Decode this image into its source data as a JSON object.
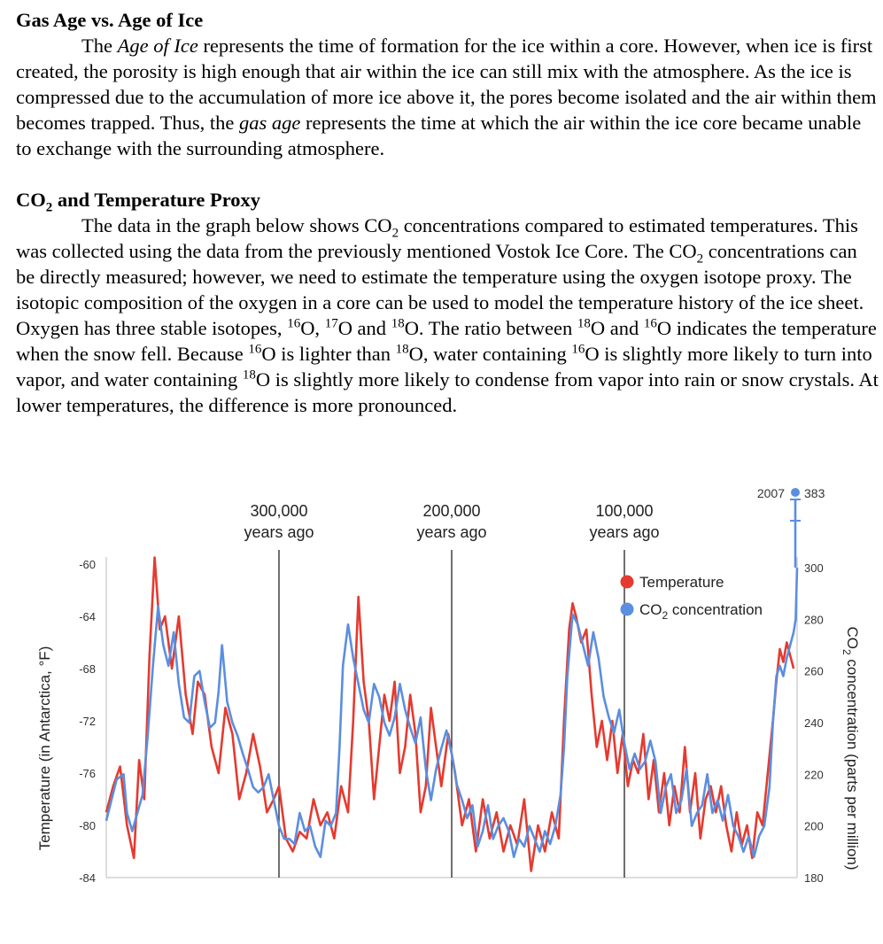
{
  "section1": {
    "heading": "Gas Age vs. Age of Ice",
    "p_intro": "The ",
    "p_term1": "Age of Ice",
    "p_mid": " represents the time of formation for the ice within a core. However, when ice is first created, the porosity is high enough that air within the ice can still mix with the atmosphere. As the ice is compressed due to the accumulation of more ice above it, the pores become isolated and the air within them becomes trapped. Thus, the ",
    "p_term2": "gas age",
    "p_end": " represents the time at which the air within the ice core became unable to exchange with the surrounding atmosphere."
  },
  "section2": {
    "heading_co": "CO",
    "heading_sub": "2",
    "heading_rest": " and Temperature Proxy",
    "p1": "The data in the graph below shows CO",
    "p2": " concentrations compared to estimated temperatures. This was collected using the data from the previously mentioned Vostok Ice Core. The CO",
    "p3": " concentrations can be directly measured; however, we need to estimate the temperature using the oxygen isotope proxy. The isotopic composition of the oxygen in a core can be used to model the temperature history of the ice sheet. Oxygen has three stable isotopes, ",
    "p4": "O, ",
    "p5": "O and ",
    "p6": "O. The ratio between ",
    "p7": "O and ",
    "p8": "O indicates the temperature when the snow fell. Because ",
    "p9": "O is lighter than ",
    "p10": "O, water containing ",
    "p11": "O is slightly more likely to turn into vapor, and water containing ",
    "p12": "O is slightly more likely to condense from vapor into rain or snow crystals. At lower temperatures, the difference is more pronounced.",
    "sub2": "2",
    "iso16": "16",
    "iso17": "17",
    "iso18": "18"
  },
  "chart_data": {
    "type": "line",
    "ylabel_left": "Temperature (in Antarctica, °F)",
    "ylabel_right_main": "CO",
    "ylabel_right_sub": "2",
    "ylabel_right_rest": " concentration (parts per million)",
    "left_ticks": [
      "-60",
      "-64",
      "-68",
      "-72",
      "-76",
      "-80",
      "-84"
    ],
    "right_ticks": [
      "300",
      "280",
      "260",
      "240",
      "220",
      "200",
      "180"
    ],
    "ylim_left": [
      -84,
      -60
    ],
    "ylim_right": [
      180,
      300
    ],
    "xlim_years_ago": [
      400000,
      0
    ],
    "markers": [
      {
        "years_ago": 300000,
        "label1": "300,000",
        "label2": "years ago"
      },
      {
        "years_ago": 200000,
        "label1": "200,000",
        "label2": "years ago"
      },
      {
        "years_ago": 100000,
        "label1": "100,000",
        "label2": "years ago"
      }
    ],
    "present": {
      "year_label": "2007",
      "value_label": "383",
      "co2": 383
    },
    "legend": [
      {
        "name": "Temperature",
        "color": "#e53a2f"
      },
      {
        "name_main": "CO",
        "name_sub": "2",
        "name_rest": " concentration",
        "color": "#5b8ee0"
      }
    ],
    "series": [
      {
        "name": "Temperature",
        "axis": "left",
        "color": "#e53a2f",
        "points": [
          [
            400000,
            -79
          ],
          [
            396000,
            -77
          ],
          [
            392000,
            -75.5
          ],
          [
            388000,
            -80
          ],
          [
            384000,
            -82.5
          ],
          [
            381000,
            -75
          ],
          [
            378000,
            -78
          ],
          [
            375000,
            -67
          ],
          [
            372000,
            -59.5
          ],
          [
            369000,
            -65
          ],
          [
            366000,
            -64
          ],
          [
            362000,
            -68
          ],
          [
            358000,
            -64
          ],
          [
            354000,
            -70
          ],
          [
            350000,
            -73
          ],
          [
            347000,
            -69
          ],
          [
            343000,
            -70
          ],
          [
            339000,
            -74
          ],
          [
            335000,
            -76
          ],
          [
            331000,
            -71
          ],
          [
            327000,
            -73
          ],
          [
            323000,
            -78
          ],
          [
            319000,
            -76
          ],
          [
            315000,
            -73
          ],
          [
            311000,
            -75.5
          ],
          [
            307000,
            -79
          ],
          [
            303000,
            -78
          ],
          [
            300000,
            -77
          ],
          [
            296000,
            -81
          ],
          [
            292000,
            -82
          ],
          [
            288000,
            -80.5
          ],
          [
            284000,
            -81
          ],
          [
            280000,
            -78
          ],
          [
            276000,
            -80
          ],
          [
            272000,
            -79
          ],
          [
            268000,
            -81
          ],
          [
            264000,
            -77
          ],
          [
            260000,
            -79
          ],
          [
            257000,
            -72
          ],
          [
            254000,
            -62.5
          ],
          [
            251000,
            -69
          ],
          [
            248000,
            -72
          ],
          [
            245000,
            -78
          ],
          [
            242000,
            -74
          ],
          [
            239000,
            -70
          ],
          [
            236000,
            -72
          ],
          [
            233000,
            -69
          ],
          [
            230000,
            -76
          ],
          [
            227000,
            -74
          ],
          [
            224000,
            -70
          ],
          [
            221000,
            -73
          ],
          [
            218000,
            -79
          ],
          [
            215000,
            -77
          ],
          [
            212000,
            -71
          ],
          [
            209000,
            -74
          ],
          [
            206000,
            -77
          ],
          [
            202000,
            -73
          ],
          [
            198000,
            -76
          ],
          [
            194000,
            -80
          ],
          [
            190000,
            -78
          ],
          [
            186000,
            -82
          ],
          [
            182000,
            -78
          ],
          [
            178000,
            -81
          ],
          [
            174000,
            -79
          ],
          [
            170000,
            -82
          ],
          [
            166000,
            -80
          ],
          [
            162000,
            -81.5
          ],
          [
            158000,
            -78
          ],
          [
            154000,
            -83.5
          ],
          [
            150000,
            -80
          ],
          [
            146000,
            -82
          ],
          [
            142000,
            -79
          ],
          [
            138000,
            -81
          ],
          [
            135000,
            -72
          ],
          [
            132000,
            -65
          ],
          [
            130000,
            -63
          ],
          [
            128000,
            -64
          ],
          [
            125000,
            -66
          ],
          [
            122000,
            -65
          ],
          [
            119000,
            -70
          ],
          [
            116000,
            -74
          ],
          [
            113000,
            -72
          ],
          [
            110000,
            -75
          ],
          [
            107000,
            -72
          ],
          [
            104000,
            -76
          ],
          [
            101000,
            -73
          ],
          [
            98000,
            -77
          ],
          [
            95000,
            -75
          ],
          [
            92000,
            -76
          ],
          [
            89000,
            -73
          ],
          [
            86000,
            -78
          ],
          [
            83000,
            -75
          ],
          [
            80000,
            -79
          ],
          [
            77000,
            -76
          ],
          [
            74000,
            -80
          ],
          [
            71000,
            -77
          ],
          [
            68000,
            -79
          ],
          [
            65000,
            -74
          ],
          [
            62000,
            -79
          ],
          [
            59000,
            -76
          ],
          [
            56000,
            -81
          ],
          [
            53000,
            -78
          ],
          [
            50000,
            -77
          ],
          [
            47000,
            -79
          ],
          [
            44000,
            -77
          ],
          [
            41000,
            -80
          ],
          [
            38000,
            -82
          ],
          [
            35000,
            -79
          ],
          [
            32000,
            -81.5
          ],
          [
            29000,
            -80
          ],
          [
            26000,
            -82.5
          ],
          [
            23000,
            -79
          ],
          [
            20000,
            -80
          ],
          [
            17000,
            -76
          ],
          [
            14000,
            -72
          ],
          [
            12000,
            -69
          ],
          [
            10000,
            -66.5
          ],
          [
            8000,
            -67.5
          ],
          [
            6000,
            -66
          ],
          [
            4000,
            -67
          ],
          [
            2000,
            -68
          ]
        ]
      },
      {
        "name": "CO2 concentration",
        "axis": "right",
        "color": "#5b8ee0",
        "points": [
          [
            400000,
            202
          ],
          [
            397000,
            210
          ],
          [
            394000,
            218
          ],
          [
            390000,
            220
          ],
          [
            388000,
            205
          ],
          [
            385000,
            198
          ],
          [
            382000,
            205
          ],
          [
            379000,
            212
          ],
          [
            376000,
            235
          ],
          [
            373000,
            262
          ],
          [
            370000,
            285
          ],
          [
            367000,
            270
          ],
          [
            364000,
            262
          ],
          [
            361000,
            275
          ],
          [
            358000,
            255
          ],
          [
            355000,
            242
          ],
          [
            352000,
            240
          ],
          [
            349000,
            258
          ],
          [
            346000,
            260
          ],
          [
            343000,
            248
          ],
          [
            340000,
            238
          ],
          [
            337000,
            240
          ],
          [
            335000,
            252
          ],
          [
            333000,
            270
          ],
          [
            330000,
            248
          ],
          [
            327000,
            240
          ],
          [
            324000,
            235
          ],
          [
            321000,
            228
          ],
          [
            318000,
            222
          ],
          [
            315000,
            215
          ],
          [
            312000,
            213
          ],
          [
            309000,
            215
          ],
          [
            306000,
            220
          ],
          [
            303000,
            210
          ],
          [
            300000,
            200
          ],
          [
            297000,
            195
          ],
          [
            294000,
            195
          ],
          [
            291000,
            193
          ],
          [
            288000,
            205
          ],
          [
            285000,
            198
          ],
          [
            282000,
            200
          ],
          [
            279000,
            192
          ],
          [
            276000,
            188
          ],
          [
            273000,
            202
          ],
          [
            270000,
            200
          ],
          [
            267000,
            205
          ],
          [
            265000,
            230
          ],
          [
            263000,
            262
          ],
          [
            260000,
            278
          ],
          [
            257000,
            265
          ],
          [
            254000,
            255
          ],
          [
            251000,
            245
          ],
          [
            248000,
            240
          ],
          [
            245000,
            255
          ],
          [
            242000,
            250
          ],
          [
            239000,
            240
          ],
          [
            236000,
            235
          ],
          [
            233000,
            242
          ],
          [
            230000,
            255
          ],
          [
            227000,
            245
          ],
          [
            224000,
            238
          ],
          [
            221000,
            232
          ],
          [
            218000,
            242
          ],
          [
            215000,
            222
          ],
          [
            212000,
            210
          ],
          [
            209000,
            222
          ],
          [
            206000,
            230
          ],
          [
            203000,
            237
          ],
          [
            200000,
            228
          ],
          [
            197000,
            216
          ],
          [
            194000,
            210
          ],
          [
            191000,
            203
          ],
          [
            188000,
            208
          ],
          [
            185000,
            192
          ],
          [
            182000,
            198
          ],
          [
            179000,
            208
          ],
          [
            176000,
            195
          ],
          [
            173000,
            200
          ],
          [
            170000,
            203
          ],
          [
            167000,
            198
          ],
          [
            164000,
            188
          ],
          [
            161000,
            195
          ],
          [
            158000,
            192
          ],
          [
            155000,
            200
          ],
          [
            152000,
            195
          ],
          [
            149000,
            190
          ],
          [
            146000,
            198
          ],
          [
            143000,
            193
          ],
          [
            140000,
            200
          ],
          [
            137000,
            212
          ],
          [
            135000,
            230
          ],
          [
            133000,
            258
          ],
          [
            130000,
            282
          ],
          [
            127000,
            278
          ],
          [
            124000,
            270
          ],
          [
            121000,
            262
          ],
          [
            118000,
            275
          ],
          [
            115000,
            265
          ],
          [
            112000,
            250
          ],
          [
            109000,
            242
          ],
          [
            106000,
            236
          ],
          [
            103000,
            245
          ],
          [
            100000,
            232
          ],
          [
            97000,
            222
          ],
          [
            94000,
            228
          ],
          [
            91000,
            222
          ],
          [
            88000,
            225
          ],
          [
            85000,
            233
          ],
          [
            82000,
            225
          ],
          [
            79000,
            205
          ],
          [
            76000,
            215
          ],
          [
            73000,
            220
          ],
          [
            70000,
            205
          ],
          [
            67000,
            210
          ],
          [
            64000,
            222
          ],
          [
            61000,
            200
          ],
          [
            58000,
            205
          ],
          [
            55000,
            208
          ],
          [
            52000,
            220
          ],
          [
            49000,
            205
          ],
          [
            46000,
            210
          ],
          [
            43000,
            202
          ],
          [
            40000,
            212
          ],
          [
            37000,
            200
          ],
          [
            34000,
            196
          ],
          [
            31000,
            190
          ],
          [
            28000,
            196
          ],
          [
            25000,
            188
          ],
          [
            22000,
            196
          ],
          [
            19000,
            200
          ],
          [
            16000,
            215
          ],
          [
            14000,
            240
          ],
          [
            12000,
            258
          ],
          [
            10000,
            262
          ],
          [
            8000,
            258
          ],
          [
            6000,
            265
          ],
          [
            4000,
            270
          ],
          [
            2000,
            275
          ],
          [
            800,
            280
          ],
          [
            0,
            300
          ]
        ]
      }
    ]
  }
}
